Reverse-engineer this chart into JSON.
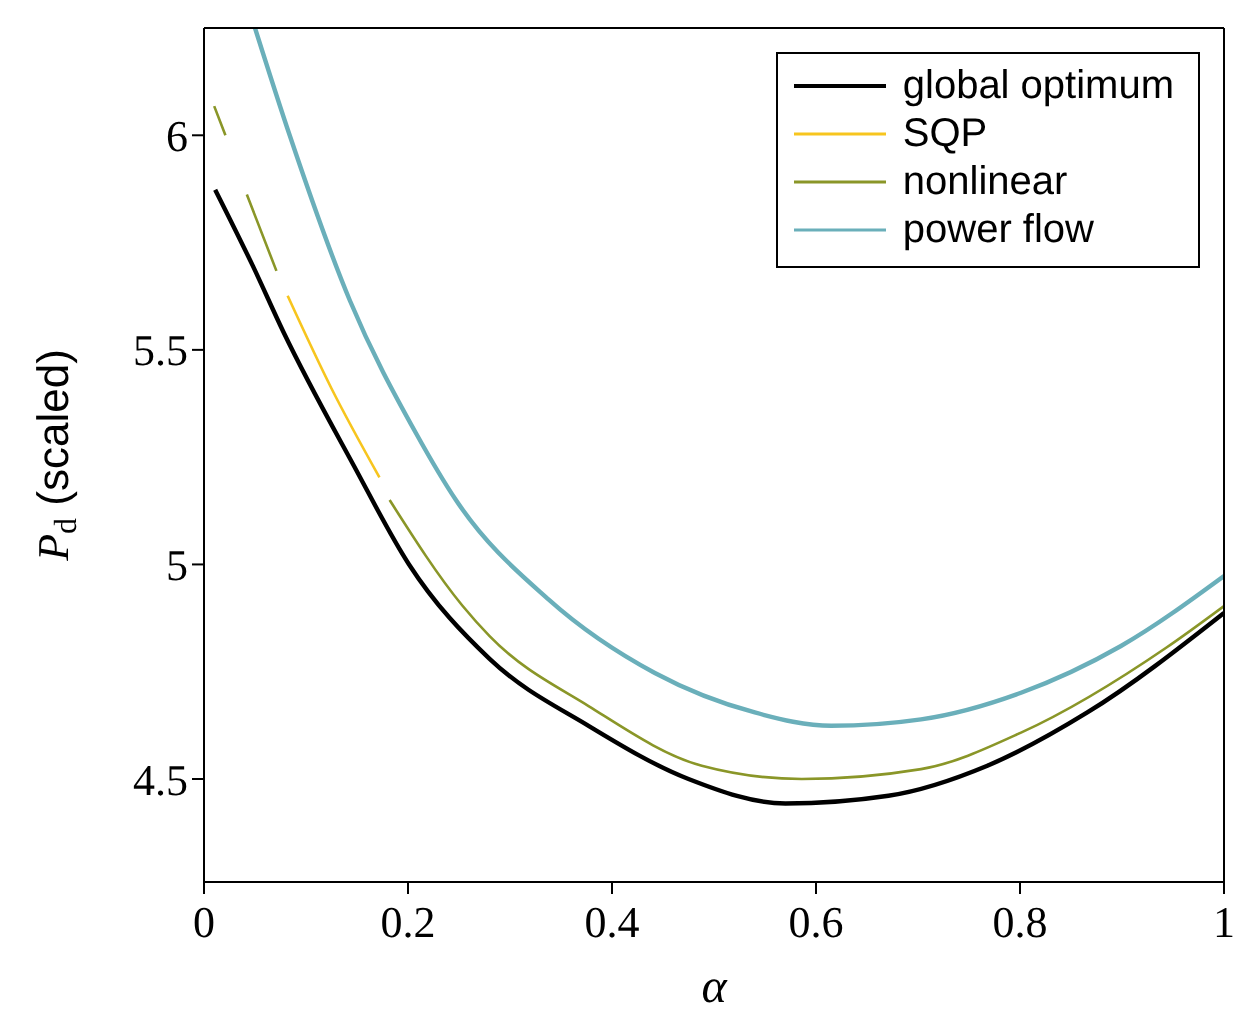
{
  "chart_data": {
    "type": "line",
    "xlabel": "α",
    "ylabel": "P$_{d}$ (scaled)",
    "xlim": [
      0,
      1
    ],
    "ylim": [
      4.26,
      6.25
    ],
    "xticks": [
      0,
      0.2,
      0.4,
      0.6,
      0.8,
      1
    ],
    "yticks": [
      4.5,
      5,
      5.5,
      6
    ],
    "grid": false,
    "legend": "top right",
    "marker": "none",
    "line_style": "solid",
    "series": [
      {
        "name": "global optimum",
        "color": "#000000",
        "x": [
          0.011,
          0.048,
          0.078,
          0.146,
          0.201,
          0.28,
          0.377,
          0.475,
          0.57,
          0.671,
          0.768,
          0.866,
          1.0
        ],
        "values": [
          5.873,
          5.695,
          5.541,
          5.234,
          5.0,
          4.78,
          4.624,
          4.5,
          4.443,
          4.461,
          4.531,
          4.655,
          4.887
        ]
      },
      {
        "name": "SQP",
        "color": "#f7c51e",
        "x": [
          0.082,
          0.125,
          0.172
        ],
        "values": [
          5.626,
          5.41,
          5.203
        ]
      },
      {
        "name": "nonlinear",
        "color": "#8a9628",
        "x": [
          0.01,
          0.021,
          0.031,
          0.042,
          0.071,
          0.12,
          0.182,
          0.253,
          0.28,
          0.377,
          0.488,
          0.586,
          0.703,
          0.801,
          0.944,
          1.0
        ],
        "values": [
          6.068,
          6.0,
          null,
          5.862,
          5.684,
          null,
          5.15,
          4.905,
          4.833,
          4.67,
          4.531,
          4.5,
          4.523,
          4.608,
          4.807,
          4.903
        ]
      },
      {
        "name": "power flow",
        "color": "#6aafba",
        "x": [
          0.05,
          0.084,
          0.143,
          0.208,
          0.247,
          0.338,
          0.442,
          0.54,
          0.615,
          0.703,
          0.801,
          0.899,
          1.0
        ],
        "values": [
          6.25,
          6.0,
          5.615,
          5.305,
          5.15,
          4.918,
          4.747,
          4.655,
          4.624,
          4.639,
          4.701,
          4.81,
          4.973
        ]
      }
    ]
  }
}
